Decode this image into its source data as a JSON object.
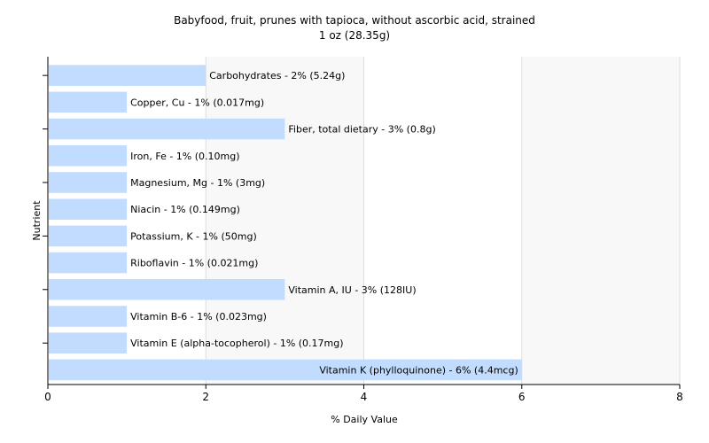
{
  "chart_data": {
    "type": "bar",
    "orientation": "horizontal",
    "title": "Babyfood, fruit, prunes with tapioca, without ascorbic acid, strained",
    "subtitle": "1 oz (28.35g)",
    "xlabel": "% Daily Value",
    "ylabel": "Nutrient",
    "xlim": [
      0,
      8
    ],
    "xticks": [
      0,
      2,
      4,
      6,
      8
    ],
    "grid": true,
    "legend": "none",
    "bar_color": "#c2dcff",
    "categories": [
      "Carbohydrates",
      "Copper, Cu",
      "Fiber, total dietary",
      "Iron, Fe",
      "Magnesium, Mg",
      "Niacin",
      "Potassium, K",
      "Riboflavin",
      "Vitamin A, IU",
      "Vitamin B-6",
      "Vitamin E (alpha-tocopherol)",
      "Vitamin K (phylloquinone)"
    ],
    "values": [
      2,
      1,
      3,
      1,
      1,
      1,
      1,
      1,
      3,
      1,
      1,
      6
    ],
    "labels": [
      "Carbohydrates - 2% (5.24g)",
      "Copper, Cu - 1% (0.017mg)",
      "Fiber, total dietary - 3% (0.8g)",
      "Iron, Fe - 1% (0.10mg)",
      "Magnesium, Mg - 1% (3mg)",
      "Niacin - 1% (0.149mg)",
      "Potassium, K - 1% (50mg)",
      "Riboflavin - 1% (0.021mg)",
      "Vitamin A, IU - 3% (128IU)",
      "Vitamin B-6 - 1% (0.023mg)",
      "Vitamin E (alpha-tocopherol) - 1% (0.17mg)",
      "Vitamin K (phylloquinone) - 6% (4.4mcg)"
    ]
  }
}
